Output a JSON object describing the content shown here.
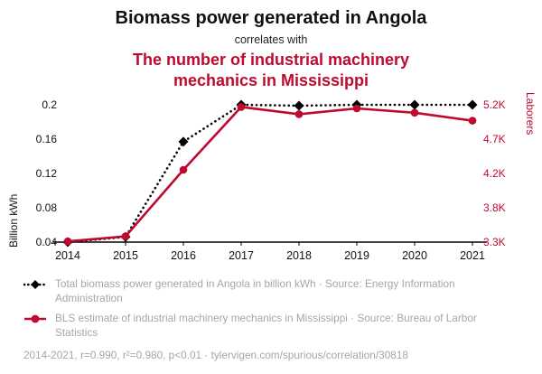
{
  "header": {
    "title": "Biomass power generated in Angola",
    "connector": "correlates with",
    "subtitle": "The number of industrial machinery mechanics in Mississippi"
  },
  "colors": {
    "red": "#bf0a30",
    "black": "#000000",
    "muted": "#a6a6a6"
  },
  "chart_data": {
    "type": "line",
    "title": "Biomass power generated in Angola correlates with The number of industrial machinery mechanics in Mississippi",
    "x": [
      2014,
      2015,
      2016,
      2017,
      2018,
      2019,
      2020,
      2021
    ],
    "grid": false,
    "legend_position": "bottom",
    "left_axis": {
      "label": "Billion kWh",
      "min": 0.04,
      "max": 0.2,
      "ticks": [
        0.04,
        0.08,
        0.12,
        0.16,
        0.2
      ],
      "tick_labels": [
        "0.04",
        "0.08",
        "0.12",
        "0.16",
        "0.2"
      ]
    },
    "right_axis": {
      "label": "Laborers",
      "min": 3300,
      "max": 5200,
      "ticks": [
        3300,
        3775,
        4250,
        4725,
        5200
      ],
      "tick_labels": [
        "3.3K",
        "3.8K",
        "4.2K",
        "4.7K",
        "5.2K"
      ]
    },
    "series": [
      {
        "id": "biomass-power",
        "name": "Total biomass power generated in Angola in billion kWh",
        "axis": "left",
        "color": "#000000",
        "style": "dotted",
        "marker": "diamond",
        "values": [
          0.04,
          0.046,
          0.157,
          0.2,
          0.199,
          0.2,
          0.2,
          0.2
        ]
      },
      {
        "id": "machinery-mechanics",
        "name": "BLS estimate of industrial machinery mechanics in Mississippi",
        "axis": "right",
        "color": "#bf0a30",
        "style": "solid",
        "marker": "circle",
        "values": [
          3310,
          3380,
          4300,
          5170,
          5070,
          5150,
          5090,
          4980
        ]
      }
    ]
  },
  "legend": {
    "items": [
      {
        "text": "Total biomass power generated in Angola in billion kWh · Source: Energy Information Administration"
      },
      {
        "text": "BLS estimate of industrial machinery mechanics in Mississippi · Source: Bureau of Larbor Statistics"
      }
    ]
  },
  "footer": {
    "text": "2014-2021, r=0.990, r²=0.980, p<0.01 · tylervigen.com/spurious/correlation/30818"
  }
}
